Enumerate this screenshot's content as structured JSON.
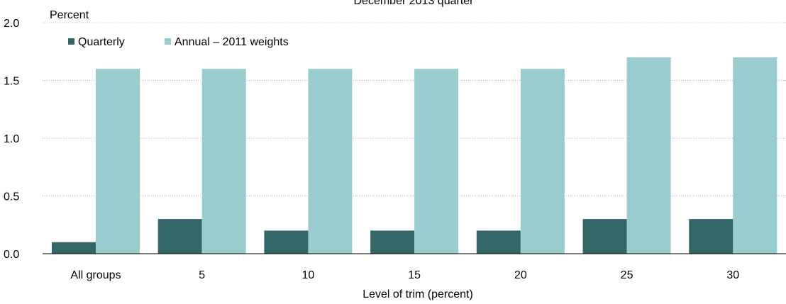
{
  "chart_data": {
    "type": "bar",
    "title": "December 2013 quarter",
    "ylabel": "Percent",
    "xlabel": "Level of trim (percent)",
    "categories": [
      "All groups",
      "5",
      "10",
      "15",
      "20",
      "25",
      "30"
    ],
    "series": [
      {
        "name": "Quarterly",
        "color": "#336666",
        "values": [
          0.1,
          0.3,
          0.2,
          0.2,
          0.2,
          0.3,
          0.3
        ]
      },
      {
        "name": "Annual – 2011 weights",
        "color": "#99CCCC",
        "values": [
          1.6,
          1.6,
          1.6,
          1.6,
          1.6,
          1.7,
          1.7
        ]
      }
    ],
    "ylim": [
      0,
      2.0
    ],
    "yticks": [
      "0.0",
      "0.5",
      "1.0",
      "1.5",
      "2.0"
    ],
    "grid": true,
    "legend_position": "top-left"
  }
}
